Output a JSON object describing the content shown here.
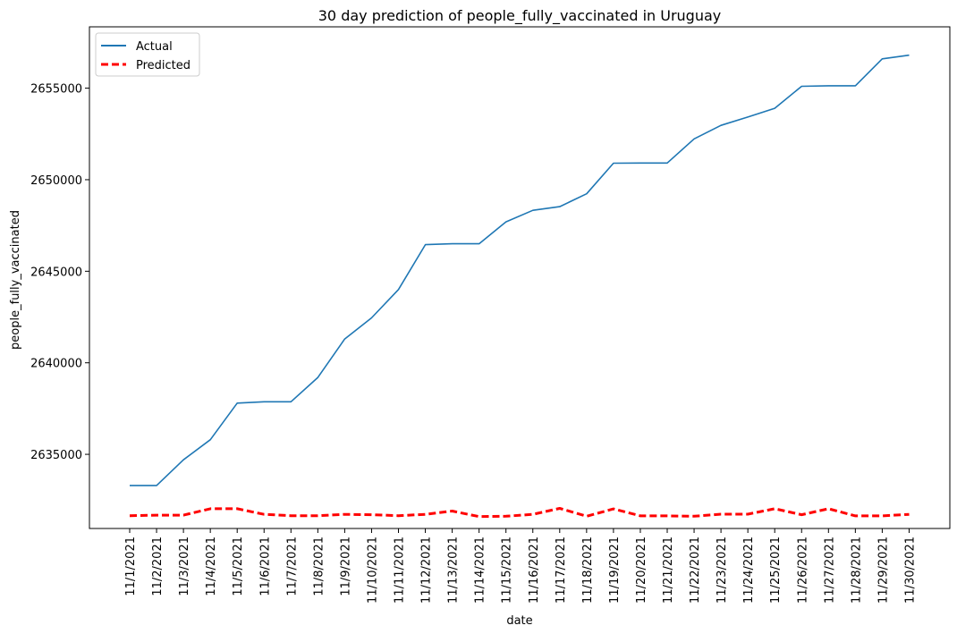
{
  "chart_data": {
    "type": "line",
    "title": "30 day prediction of people_fully_vaccinated in Uruguay",
    "xlabel": "date",
    "ylabel": "people_fully_vaccinated",
    "categories": [
      "11/1/2021",
      "11/2/2021",
      "11/3/2021",
      "11/4/2021",
      "11/5/2021",
      "11/6/2021",
      "11/7/2021",
      "11/8/2021",
      "11/9/2021",
      "11/10/2021",
      "11/11/2021",
      "11/12/2021",
      "11/13/2021",
      "11/14/2021",
      "11/15/2021",
      "11/16/2021",
      "11/17/2021",
      "11/18/2021",
      "11/19/2021",
      "11/20/2021",
      "11/21/2021",
      "11/22/2021",
      "11/23/2021",
      "11/24/2021",
      "11/25/2021",
      "11/26/2021",
      "11/27/2021",
      "11/28/2021",
      "11/29/2021",
      "11/30/2021"
    ],
    "yticks": [
      2635000,
      2640000,
      2645000,
      2650000,
      2655000
    ],
    "ylim": [
      2630950,
      2658350
    ],
    "legend_position": "upper-left",
    "grid": false,
    "series": [
      {
        "name": "Actual",
        "color": "#1f77b4",
        "style": "solid",
        "values": [
          2633300,
          2633300,
          2634700,
          2635800,
          2637800,
          2637870,
          2637870,
          2639200,
          2641300,
          2642450,
          2644000,
          2646450,
          2646500,
          2646500,
          2647700,
          2648330,
          2648530,
          2649230,
          2650900,
          2650910,
          2650910,
          2652230,
          2652970,
          2653420,
          2653900,
          2655100,
          2655130,
          2655130,
          2656600,
          2656800
        ]
      },
      {
        "name": "Predicted",
        "color": "#ff0000",
        "style": "dashed",
        "values": [
          2631650,
          2631680,
          2631680,
          2632030,
          2632030,
          2631720,
          2631650,
          2631650,
          2631720,
          2631700,
          2631650,
          2631720,
          2631900,
          2631600,
          2631620,
          2631720,
          2632050,
          2631620,
          2632020,
          2631640,
          2631640,
          2631620,
          2631730,
          2631730,
          2632030,
          2631700,
          2632030,
          2631640,
          2631640,
          2631720
        ]
      }
    ]
  }
}
